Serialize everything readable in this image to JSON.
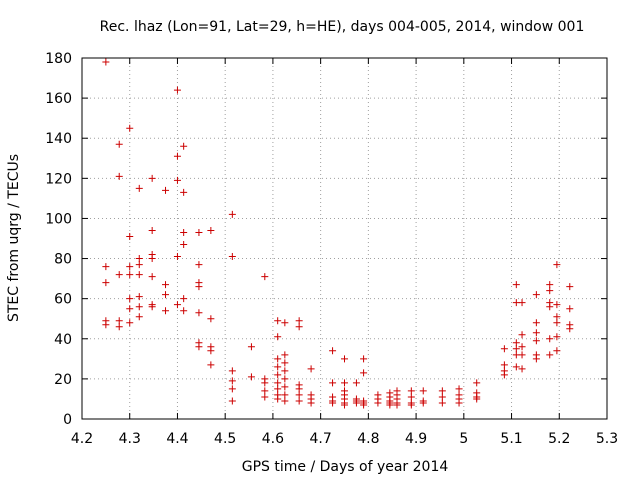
{
  "chart_data": {
    "type": "scatter",
    "title": "Rec. lhaz (Lon=91, Lat=29, h=HE), days 004-005, 2014, window 001",
    "xlabel": "GPS time / Days of year 2014",
    "ylabel": "STEC from uqrg / TECUs",
    "xlim": [
      4.2,
      5.3
    ],
    "ylim": [
      0,
      180
    ],
    "xticks": [
      "4.2",
      "4.3",
      "4.4",
      "4.5",
      "4.6",
      "4.7",
      "4.8",
      "4.9",
      "5",
      "5.1",
      "5.2",
      "5.3"
    ],
    "yticks": [
      "0",
      "20",
      "40",
      "60",
      "80",
      "100",
      "120",
      "140",
      "160",
      "180"
    ],
    "grid": true,
    "marker": "plus",
    "color": "#cc0000",
    "points": [
      [
        4.25,
        178
      ],
      [
        4.25,
        76
      ],
      [
        4.25,
        68
      ],
      [
        4.25,
        49
      ],
      [
        4.25,
        47
      ],
      [
        4.278,
        137
      ],
      [
        4.278,
        121
      ],
      [
        4.278,
        72
      ],
      [
        4.278,
        49
      ],
      [
        4.278,
        46
      ],
      [
        4.3,
        145
      ],
      [
        4.3,
        91
      ],
      [
        4.3,
        76
      ],
      [
        4.3,
        72
      ],
      [
        4.3,
        60
      ],
      [
        4.3,
        55
      ],
      [
        4.3,
        48
      ],
      [
        4.32,
        115
      ],
      [
        4.32,
        80
      ],
      [
        4.32,
        77
      ],
      [
        4.32,
        72
      ],
      [
        4.32,
        61
      ],
      [
        4.32,
        56
      ],
      [
        4.32,
        51
      ],
      [
        4.347,
        120
      ],
      [
        4.347,
        94
      ],
      [
        4.347,
        82
      ],
      [
        4.347,
        80
      ],
      [
        4.347,
        71
      ],
      [
        4.347,
        57
      ],
      [
        4.347,
        56
      ],
      [
        4.375,
        114
      ],
      [
        4.375,
        67
      ],
      [
        4.375,
        62
      ],
      [
        4.375,
        54
      ],
      [
        4.4,
        164
      ],
      [
        4.4,
        131
      ],
      [
        4.4,
        119
      ],
      [
        4.4,
        81
      ],
      [
        4.4,
        57
      ],
      [
        4.413,
        136
      ],
      [
        4.413,
        113
      ],
      [
        4.413,
        93
      ],
      [
        4.413,
        87
      ],
      [
        4.413,
        60
      ],
      [
        4.413,
        54
      ],
      [
        4.445,
        93
      ],
      [
        4.445,
        77
      ],
      [
        4.445,
        68
      ],
      [
        4.445,
        66
      ],
      [
        4.445,
        53
      ],
      [
        4.445,
        38
      ],
      [
        4.445,
        36
      ],
      [
        4.47,
        94
      ],
      [
        4.47,
        50
      ],
      [
        4.47,
        36
      ],
      [
        4.47,
        34
      ],
      [
        4.47,
        27
      ],
      [
        4.515,
        102
      ],
      [
        4.515,
        81
      ],
      [
        4.515,
        24
      ],
      [
        4.515,
        19
      ],
      [
        4.515,
        15
      ],
      [
        4.515,
        9
      ],
      [
        4.555,
        36
      ],
      [
        4.555,
        21
      ],
      [
        4.583,
        71
      ],
      [
        4.583,
        20
      ],
      [
        4.583,
        18
      ],
      [
        4.583,
        14
      ],
      [
        4.583,
        11
      ],
      [
        4.61,
        49
      ],
      [
        4.61,
        41
      ],
      [
        4.61,
        30
      ],
      [
        4.61,
        26
      ],
      [
        4.61,
        22
      ],
      [
        4.61,
        18
      ],
      [
        4.61,
        15
      ],
      [
        4.61,
        12
      ],
      [
        4.61,
        10
      ],
      [
        4.625,
        48
      ],
      [
        4.625,
        32
      ],
      [
        4.625,
        28
      ],
      [
        4.625,
        24
      ],
      [
        4.625,
        20
      ],
      [
        4.625,
        16
      ],
      [
        4.625,
        12
      ],
      [
        4.625,
        9
      ],
      [
        4.655,
        49
      ],
      [
        4.655,
        46
      ],
      [
        4.655,
        17
      ],
      [
        4.655,
        15
      ],
      [
        4.655,
        12
      ],
      [
        4.655,
        9
      ],
      [
        4.68,
        25
      ],
      [
        4.68,
        12
      ],
      [
        4.68,
        10
      ],
      [
        4.68,
        8
      ],
      [
        4.725,
        34
      ],
      [
        4.725,
        18
      ],
      [
        4.725,
        11
      ],
      [
        4.725,
        9
      ],
      [
        4.725,
        8
      ],
      [
        4.75,
        30
      ],
      [
        4.75,
        18
      ],
      [
        4.75,
        14
      ],
      [
        4.75,
        12
      ],
      [
        4.75,
        10
      ],
      [
        4.75,
        8
      ],
      [
        4.75,
        7
      ],
      [
        4.775,
        18
      ],
      [
        4.775,
        10
      ],
      [
        4.775,
        9
      ],
      [
        4.775,
        8
      ],
      [
        4.79,
        30
      ],
      [
        4.79,
        23
      ],
      [
        4.79,
        9
      ],
      [
        4.79,
        8
      ],
      [
        4.79,
        7
      ],
      [
        4.82,
        12
      ],
      [
        4.82,
        10
      ],
      [
        4.82,
        8
      ],
      [
        4.845,
        13
      ],
      [
        4.845,
        11
      ],
      [
        4.845,
        9
      ],
      [
        4.845,
        8
      ],
      [
        4.845,
        7
      ],
      [
        4.86,
        14
      ],
      [
        4.86,
        12
      ],
      [
        4.86,
        10
      ],
      [
        4.86,
        8
      ],
      [
        4.86,
        7
      ],
      [
        4.89,
        14
      ],
      [
        4.89,
        11
      ],
      [
        4.89,
        8
      ],
      [
        4.89,
        7
      ],
      [
        4.915,
        14
      ],
      [
        4.915,
        9
      ],
      [
        4.915,
        8
      ],
      [
        4.955,
        14
      ],
      [
        4.955,
        11
      ],
      [
        4.955,
        8
      ],
      [
        4.99,
        15
      ],
      [
        4.99,
        12
      ],
      [
        4.99,
        10
      ],
      [
        4.99,
        8
      ],
      [
        5.027,
        18
      ],
      [
        5.027,
        13
      ],
      [
        5.027,
        11
      ],
      [
        5.027,
        10
      ],
      [
        5.085,
        35
      ],
      [
        5.085,
        27
      ],
      [
        5.085,
        24
      ],
      [
        5.085,
        22
      ],
      [
        5.11,
        67
      ],
      [
        5.11,
        58
      ],
      [
        5.11,
        38
      ],
      [
        5.11,
        35
      ],
      [
        5.11,
        32
      ],
      [
        5.11,
        26
      ],
      [
        5.122,
        58
      ],
      [
        5.122,
        42
      ],
      [
        5.122,
        36
      ],
      [
        5.122,
        32
      ],
      [
        5.122,
        25
      ],
      [
        5.152,
        62
      ],
      [
        5.152,
        48
      ],
      [
        5.152,
        43
      ],
      [
        5.152,
        39
      ],
      [
        5.152,
        32
      ],
      [
        5.152,
        30
      ],
      [
        5.18,
        67
      ],
      [
        5.18,
        64
      ],
      [
        5.18,
        58
      ],
      [
        5.18,
        56
      ],
      [
        5.18,
        40
      ],
      [
        5.18,
        32
      ],
      [
        5.195,
        77
      ],
      [
        5.195,
        57
      ],
      [
        5.195,
        51
      ],
      [
        5.195,
        48
      ],
      [
        5.195,
        41
      ],
      [
        5.195,
        34
      ],
      [
        5.222,
        66
      ],
      [
        5.222,
        55
      ],
      [
        5.222,
        47
      ],
      [
        5.222,
        45
      ]
    ]
  }
}
